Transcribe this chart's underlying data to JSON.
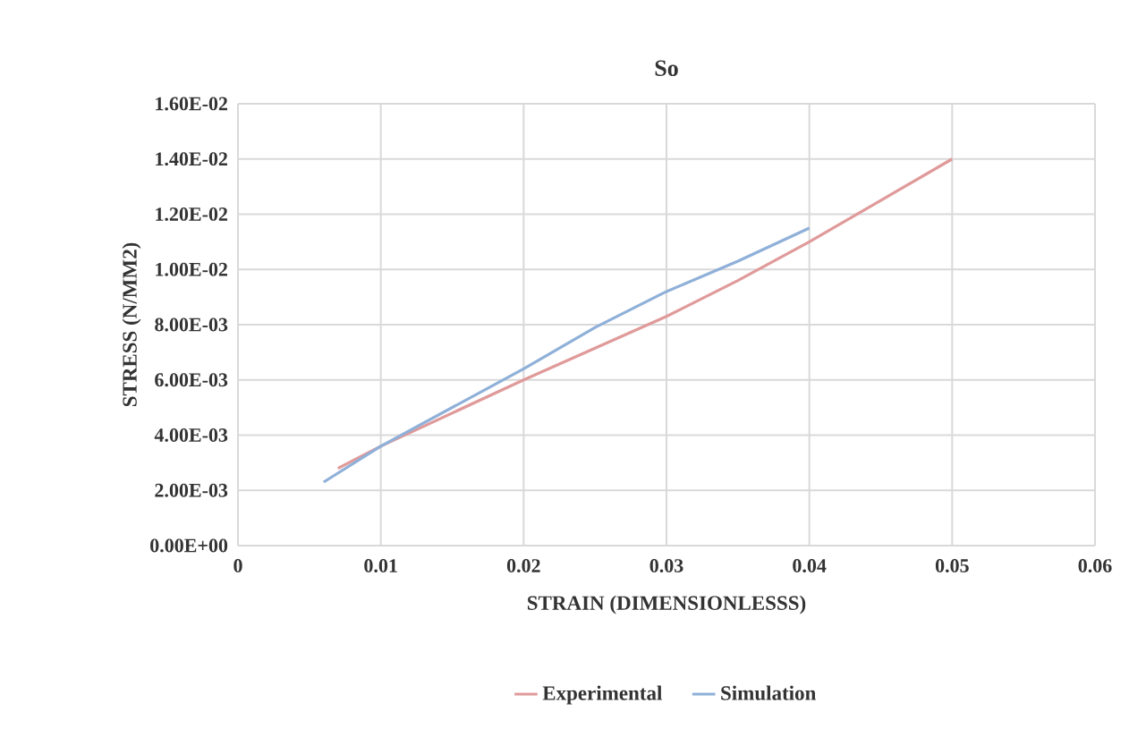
{
  "chart_data": {
    "type": "line",
    "title": "So",
    "xlabel": "STRAIN (DIMENSIONLESSS)",
    "ylabel": "STRESS (N/MM2)",
    "series": [
      {
        "name": "Experimental",
        "color": "#e09a9a",
        "x": [
          0.007,
          0.01,
          0.02,
          0.03,
          0.035,
          0.04,
          0.045,
          0.05
        ],
        "values": [
          0.0028,
          0.0036,
          0.006,
          0.0083,
          0.0096,
          0.011,
          0.0125,
          0.014
        ]
      },
      {
        "name": "Simulation",
        "color": "#8fb0d8",
        "x": [
          0.006,
          0.01,
          0.02,
          0.025,
          0.03,
          0.035,
          0.04
        ],
        "values": [
          0.0023,
          0.0036,
          0.0064,
          0.0079,
          0.0092,
          0.0103,
          0.0115
        ]
      }
    ],
    "xlim": [
      0,
      0.06
    ],
    "ylim": [
      0,
      0.016
    ],
    "xticks": [
      0,
      0.01,
      0.02,
      0.03,
      0.04,
      0.05,
      0.06
    ],
    "yticks": [
      {
        "value": 0,
        "label": "0.00E+00"
      },
      {
        "value": 0.002,
        "label": "2.00E-03"
      },
      {
        "value": 0.004,
        "label": "4.00E-03"
      },
      {
        "value": 0.006,
        "label": "6.00E-03"
      },
      {
        "value": 0.008,
        "label": "8.00E-03"
      },
      {
        "value": 0.01,
        "label": "1.00E-02"
      },
      {
        "value": 0.012,
        "label": "1.20E-02"
      },
      {
        "value": 0.014,
        "label": "1.40E-02"
      },
      {
        "value": 0.016,
        "label": "1.60E-02"
      }
    ],
    "grid": true,
    "legend": "bottom",
    "marker": "none",
    "line_style": "solid"
  }
}
